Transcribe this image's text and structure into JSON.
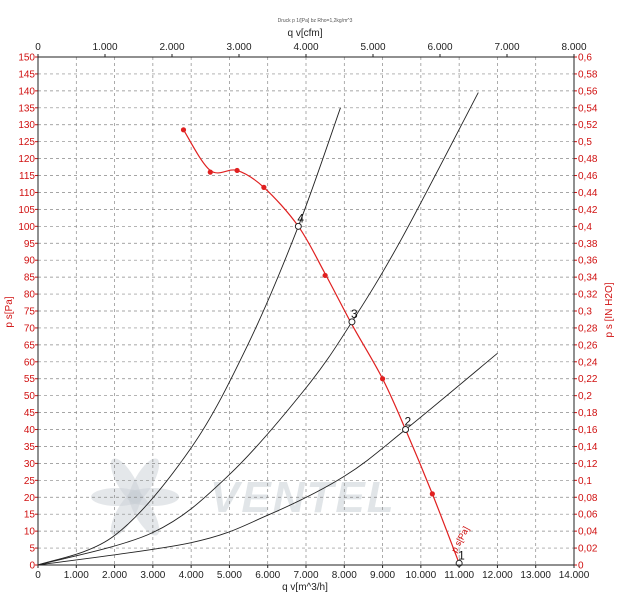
{
  "chart_data": {
    "type": "line",
    "header": "Druck p 1/[Pa] bz Rho=1,2kg/m^3",
    "x_bottom": {
      "label": "q v[m^3/h]",
      "lim": [
        0,
        14000
      ],
      "ticks": [
        "0",
        "1.000",
        "2.000",
        "3.000",
        "4.000",
        "5.000",
        "6.000",
        "7.000",
        "8.000",
        "9.000",
        "10.000",
        "11.000",
        "12.000",
        "13.000",
        "14.000"
      ]
    },
    "x_top": {
      "label": "q v[cfm]",
      "lim": [
        0,
        8000
      ],
      "ticks": [
        "0",
        "1.000",
        "2.000",
        "3.000",
        "4.000",
        "5.000",
        "6.000",
        "7.000",
        "8.000"
      ]
    },
    "y_left": {
      "label": "p s[Pa]",
      "lim": [
        0,
        150
      ],
      "ticks": [
        "0",
        "5",
        "10",
        "15",
        "20",
        "25",
        "30",
        "35",
        "40",
        "45",
        "50",
        "55",
        "60",
        "65",
        "70",
        "75",
        "80",
        "85",
        "90",
        "95",
        "100",
        "105",
        "110",
        "115",
        "120",
        "125",
        "130",
        "135",
        "140",
        "145",
        "150"
      ]
    },
    "y_right": {
      "label": "p s [IN H2O]",
      "lim": [
        0,
        0.6
      ],
      "ticks": [
        "0",
        "0,02",
        "0,04",
        "0,06",
        "0,08",
        "0,1",
        "0,12",
        "0,14",
        "0,16",
        "0,18",
        "0,2",
        "0,22",
        "0,24",
        "0,26",
        "0,28",
        "0,3",
        "0,32",
        "0,34",
        "0,36",
        "0,38",
        "0,4",
        "0,42",
        "0,44",
        "0,46",
        "0,48",
        "0,5",
        "0,52",
        "0,54",
        "0,56",
        "0,58",
        "0,6"
      ]
    },
    "grid": true,
    "watermark": "VENTEL",
    "series": [
      {
        "name": "p s[Pa]",
        "color": "#e02020",
        "kind": "fan-curve",
        "points": [
          [
            3800,
            128.5
          ],
          [
            4500,
            116.5
          ],
          [
            5200,
            116.5
          ],
          [
            5900,
            111.5
          ],
          [
            6800,
            100
          ],
          [
            7500,
            86
          ],
          [
            8200,
            71
          ],
          [
            9000,
            55
          ],
          [
            9600,
            40
          ],
          [
            10300,
            21
          ],
          [
            11000,
            0.5
          ]
        ],
        "markers": [
          [
            3800,
            128.5
          ],
          [
            4500,
            116
          ],
          [
            5200,
            116.5
          ],
          [
            5900,
            111.5
          ],
          [
            7500,
            85.5
          ],
          [
            9000,
            55
          ],
          [
            10300,
            21
          ]
        ]
      },
      {
        "name": "",
        "color": "#222222",
        "kind": "parabola",
        "points": [
          [
            0,
            0
          ],
          [
            2000,
            8.7
          ],
          [
            4000,
            34.6
          ],
          [
            5500,
            65.5
          ],
          [
            6800,
            100
          ],
          [
            7900,
            135
          ]
        ]
      },
      {
        "name": "",
        "color": "#222222",
        "kind": "parabola",
        "points": [
          [
            0,
            0
          ],
          [
            3000,
            9.6
          ],
          [
            5000,
            26.7
          ],
          [
            7000,
            52.3
          ],
          [
            8200,
            71.8
          ],
          [
            9500,
            96.4
          ],
          [
            11500,
            139.5
          ]
        ]
      },
      {
        "name": "",
        "color": "#222222",
        "kind": "parabola",
        "points": [
          [
            0,
            0
          ],
          [
            4000,
            6.6
          ],
          [
            6000,
            14.7
          ],
          [
            8000,
            26.2
          ],
          [
            9600,
            40
          ],
          [
            12000,
            62.5
          ]
        ]
      }
    ],
    "annotations": [
      {
        "text": "4",
        "x": 6800,
        "y": 100
      },
      {
        "text": "3",
        "x": 8200,
        "y": 71.8
      },
      {
        "text": "2",
        "x": 9600,
        "y": 40
      },
      {
        "text": "1",
        "x": 11000,
        "y": 0.5
      }
    ]
  }
}
